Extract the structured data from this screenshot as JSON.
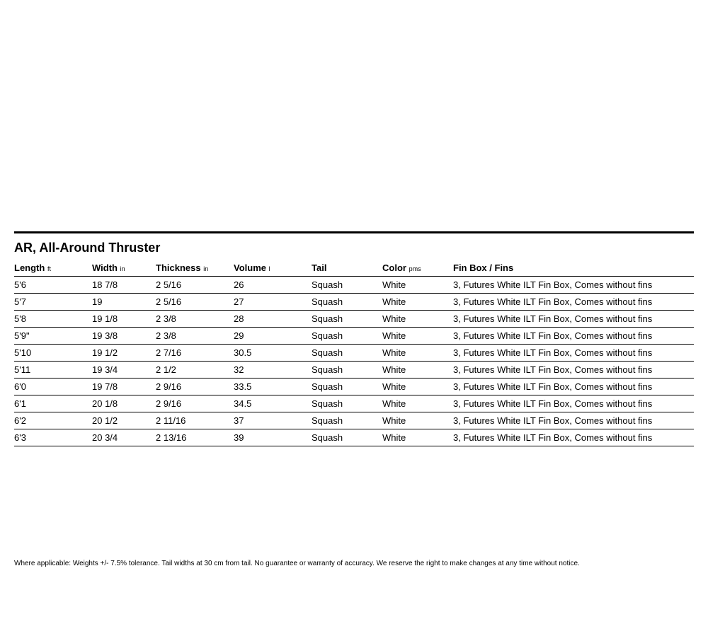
{
  "title": "AR, All-Around Thruster",
  "columns": [
    {
      "label": "Length",
      "unit": "ft"
    },
    {
      "label": "Width",
      "unit": "in"
    },
    {
      "label": "Thickness",
      "unit": "in"
    },
    {
      "label": "Volume",
      "unit": "l"
    },
    {
      "label": "Tail",
      "unit": ""
    },
    {
      "label": "Color",
      "unit": "pms"
    },
    {
      "label": "Fin Box / Fins",
      "unit": ""
    }
  ],
  "rows": [
    {
      "length": "5'6",
      "width": "18 7/8",
      "thickness": "2  5/16",
      "volume": "26",
      "tail": "Squash",
      "color": "White",
      "finbox": "3, Futures White ILT Fin Box, Comes without fins"
    },
    {
      "length": "5'7",
      "width": "19",
      "thickness": "2  5/16",
      "volume": "27",
      "tail": "Squash",
      "color": "White",
      "finbox": "3, Futures White ILT Fin Box, Comes without fins"
    },
    {
      "length": "5'8",
      "width": "19 1/8",
      "thickness": "2 3/8",
      "volume": "28",
      "tail": "Squash",
      "color": "White",
      "finbox": "3, Futures White ILT Fin Box, Comes without fins"
    },
    {
      "length": "5'9\"",
      "width": "19 3/8",
      "thickness": "2 3/8",
      "volume": "29",
      "tail": "Squash",
      "color": "White",
      "finbox": "3, Futures White ILT Fin Box, Comes without fins"
    },
    {
      "length": "5'10",
      "width": "19 1/2",
      "thickness": "2  7/16",
      "volume": "30.5",
      "tail": "Squash",
      "color": "White",
      "finbox": "3, Futures White ILT Fin Box, Comes without fins"
    },
    {
      "length": "5'11",
      "width": "19 3/4",
      "thickness": "2 1/2",
      "volume": "32",
      "tail": "Squash",
      "color": "White",
      "finbox": "3, Futures White ILT Fin Box, Comes without fins"
    },
    {
      "length": "6'0",
      "width": "19 7/8",
      "thickness": "2 9/16",
      "volume": "33.5",
      "tail": "Squash",
      "color": "White",
      "finbox": "3, Futures White ILT Fin Box, Comes without fins"
    },
    {
      "length": "6'1",
      "width": "20 1/8",
      "thickness": "2 9/16",
      "volume": "34.5",
      "tail": "Squash",
      "color": "White",
      "finbox": "3, Futures White ILT Fin Box, Comes without fins"
    },
    {
      "length": "6'2",
      "width": "20 1/2",
      "thickness": "2  11/16",
      "volume": "37",
      "tail": "Squash",
      "color": "White",
      "finbox": "3, Futures White ILT Fin Box, Comes without fins"
    },
    {
      "length": "6'3",
      "width": "20 3/4",
      "thickness": "2 13/16",
      "volume": "39",
      "tail": "Squash",
      "color": "White",
      "finbox": "3, Futures White ILT Fin Box, Comes without fins"
    }
  ],
  "footer": "Where applicable: Weights +/- 7.5% tolerance. Tail widths at 30 cm from tail. No guarantee or warranty of accuracy. We reserve the right to make changes at any time without notice.",
  "style": {
    "background_color": "#ffffff",
    "text_color": "#000000",
    "rule_color": "#000000",
    "title_fontsize": 18,
    "header_fontsize": 13,
    "cell_fontsize": 13,
    "unit_fontsize": 9,
    "footer_fontsize": 10,
    "top_rule_thickness": 3,
    "row_rule_thickness": 1
  }
}
